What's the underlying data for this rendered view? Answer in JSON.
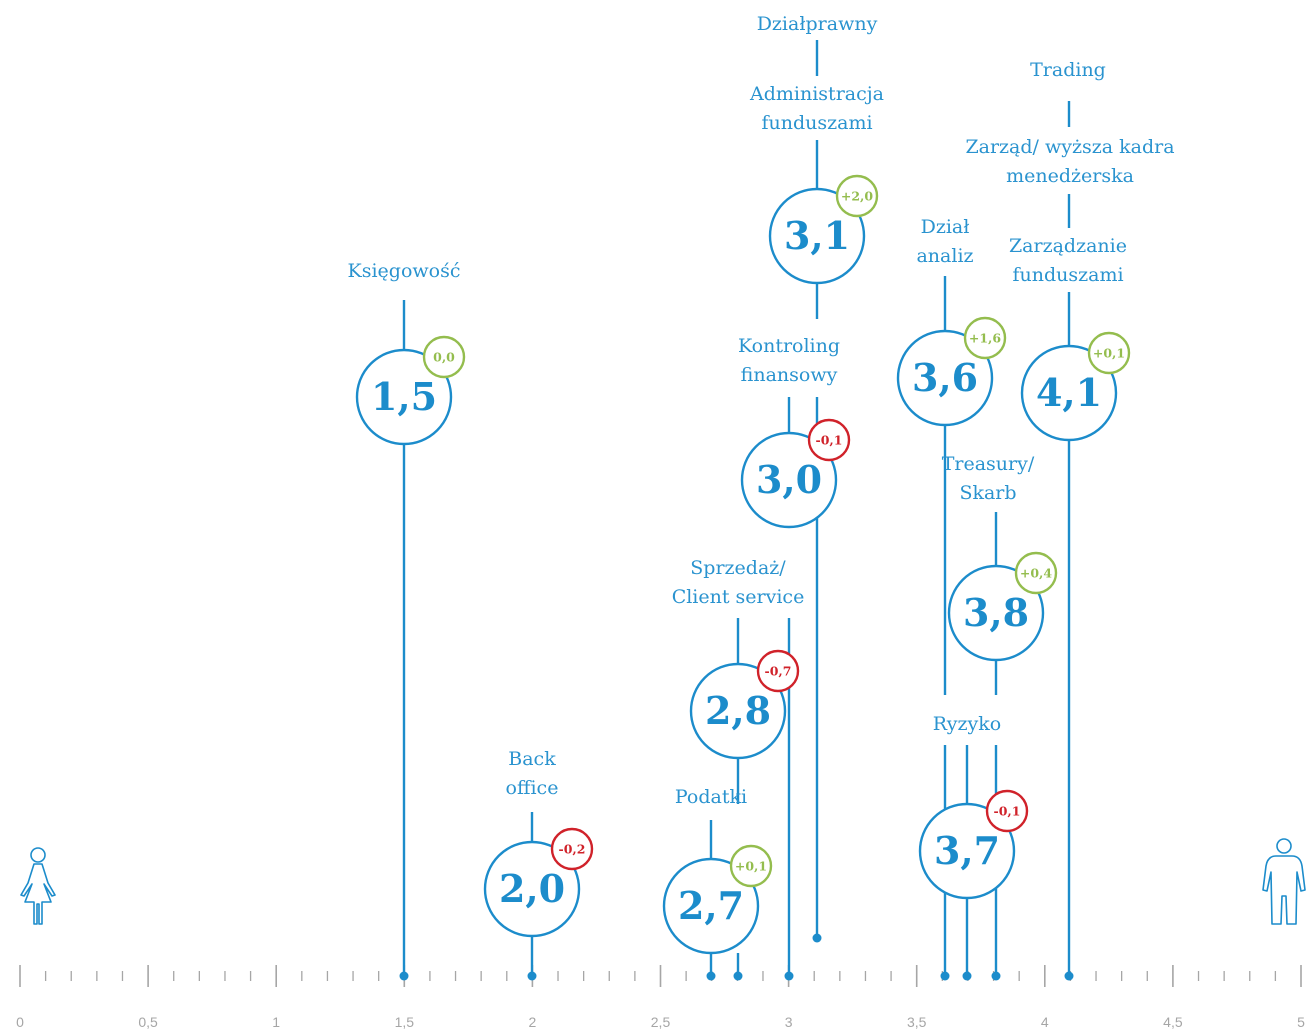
{
  "chart_data": {
    "type": "scatter",
    "title": "",
    "xlabel": "",
    "ylabel": "",
    "xlim": [
      0,
      5
    ],
    "x_ticks": [
      "0",
      "0,5",
      "1",
      "1,5",
      "2",
      "2,5",
      "3",
      "3,5",
      "4",
      "4,5",
      "5"
    ],
    "colors": {
      "main": "#1c8ccb",
      "positive": "#94bd4e",
      "negative": "#d0222a",
      "axis": "#a6a6a6"
    },
    "icons": {
      "left": "female-figure-icon",
      "right": "male-figure-icon"
    },
    "bubbles": [
      {
        "value": 1.5,
        "display": "1,5",
        "change": "0,0",
        "change_sign": "positive"
      },
      {
        "value": 2.0,
        "display": "2,0",
        "change": "-0,2",
        "change_sign": "negative"
      },
      {
        "value": 2.7,
        "display": "2,7",
        "change": "+0,1",
        "change_sign": "positive"
      },
      {
        "value": 2.8,
        "display": "2,8",
        "change": "-0,7",
        "change_sign": "negative"
      },
      {
        "value": 3.0,
        "display": "3,0",
        "change": "-0,1",
        "change_sign": "negative"
      },
      {
        "value": 3.1,
        "display": "3,1",
        "change": "+2,0",
        "change_sign": "positive"
      },
      {
        "value": 3.6,
        "display": "3,6",
        "change": "+1,6",
        "change_sign": "positive"
      },
      {
        "value": 3.7,
        "display": "3,7",
        "change": "-0,1",
        "change_sign": "negative"
      },
      {
        "value": 3.8,
        "display": "3,8",
        "change": "+0,4",
        "change_sign": "positive"
      },
      {
        "value": 4.1,
        "display": "4,1",
        "change": "+0,1",
        "change_sign": "positive"
      }
    ],
    "categories": [
      {
        "name": "Księgowość",
        "value": 1.5
      },
      {
        "name": "Back office",
        "value": 2.0
      },
      {
        "name": "Podatki",
        "value": 2.7
      },
      {
        "name": "Sprzedaż/ Client service",
        "value": 2.8
      },
      {
        "name": "Kontroling finansowy",
        "value": 3.0
      },
      {
        "name": "Administracja funduszami",
        "value": 3.1
      },
      {
        "name": "Działprawny",
        "value": 3.1
      },
      {
        "name": "Dział analiz",
        "value": 3.6
      },
      {
        "name": "Ryzyko",
        "value": 3.7
      },
      {
        "name": "Treasury/ Skarb",
        "value": 3.8
      },
      {
        "name": "Zarządzanie funduszami",
        "value": 4.1
      },
      {
        "name": "Zarząd/ wyższa kadra menedżerska",
        "value": 4.1
      },
      {
        "name": "Trading",
        "value": 4.1
      }
    ]
  }
}
